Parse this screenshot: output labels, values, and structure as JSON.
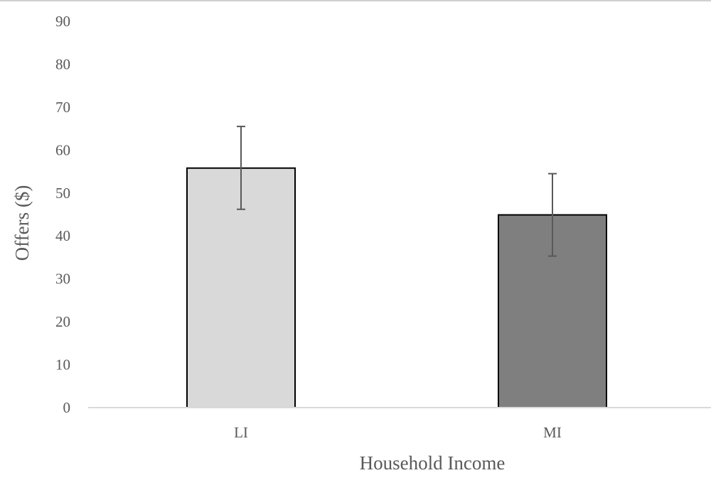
{
  "chart_data": {
    "type": "bar",
    "title": "",
    "xlabel": "Household Income",
    "ylabel": "Offers ($)",
    "categories": [
      "LI",
      "MI"
    ],
    "values": [
      55.8,
      44.9
    ],
    "error_bars": [
      {
        "low": 46.2,
        "high": 65.5
      },
      {
        "low": 35.3,
        "high": 54.5
      }
    ],
    "bar_colors": [
      "#d9d9d9",
      "#7f7f7f"
    ],
    "ylim": [
      0,
      90
    ],
    "yticks": [
      "0",
      "10",
      "20",
      "30",
      "40",
      "50",
      "60",
      "70",
      "80",
      "90"
    ],
    "grid": false,
    "legend": "none"
  }
}
